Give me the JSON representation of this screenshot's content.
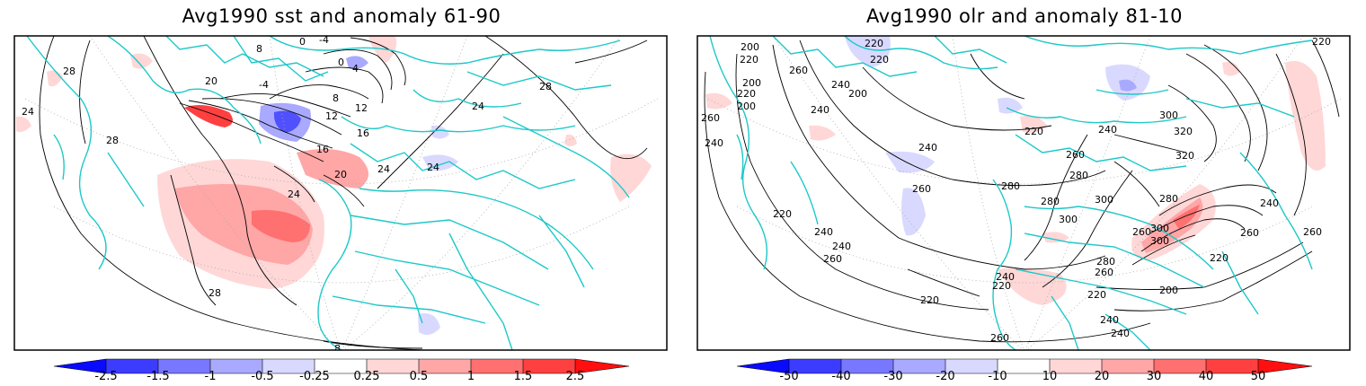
{
  "panels": [
    {
      "title": "Avg1990 sst and anomaly 61-90",
      "contour_labels": [
        "28",
        "24",
        "20",
        "16",
        "12",
        "8",
        "4",
        "0",
        "-4",
        "8",
        "0",
        "-4",
        "28",
        "28",
        "24",
        "20",
        "16",
        "12",
        "24",
        "24",
        "28",
        "24",
        "8"
      ],
      "colorbar": {
        "labels": [
          "-2.5",
          "-1.5",
          "-1",
          "-0.5",
          "-0.25",
          "0.25",
          "0.5",
          "1",
          "1.5",
          "2.5"
        ],
        "colors": [
          "#0a0aff",
          "#3c3cff",
          "#7878ff",
          "#a9a9ff",
          "#d9d9ff",
          "#ffffff",
          "#ffd7d7",
          "#ffa6a6",
          "#ff7070",
          "#ff4040",
          "#ff0f0f"
        ]
      }
    },
    {
      "title": "Avg1990 olr and anomaly 81-10",
      "contour_labels": [
        "200",
        "220",
        "200",
        "260",
        "240",
        "220",
        "260",
        "240",
        "200",
        "220",
        "240",
        "220",
        "200",
        "240",
        "260",
        "280",
        "220",
        "240",
        "260",
        "280",
        "300",
        "300",
        "320",
        "320",
        "300",
        "280",
        "260",
        "240",
        "220",
        "260",
        "240",
        "220",
        "240",
        "260",
        "280",
        "300",
        "240",
        "260",
        "280",
        "300",
        "220",
        "200",
        "220",
        "240",
        "220",
        "260",
        "240",
        "260",
        "220"
      ],
      "colorbar": {
        "labels": [
          "-50",
          "-40",
          "-30",
          "-20",
          "-10",
          "10",
          "20",
          "30",
          "40",
          "50"
        ],
        "colors": [
          "#0a0aff",
          "#3c3cff",
          "#7878ff",
          "#a9a9ff",
          "#d9d9ff",
          "#ffffff",
          "#ffd7d7",
          "#ffa6a6",
          "#ff7070",
          "#ff4040",
          "#ff0f0f"
        ]
      }
    }
  ],
  "colors": {
    "coastline": "#1ec8c8",
    "contour": "#000000",
    "grid": "#999999"
  }
}
